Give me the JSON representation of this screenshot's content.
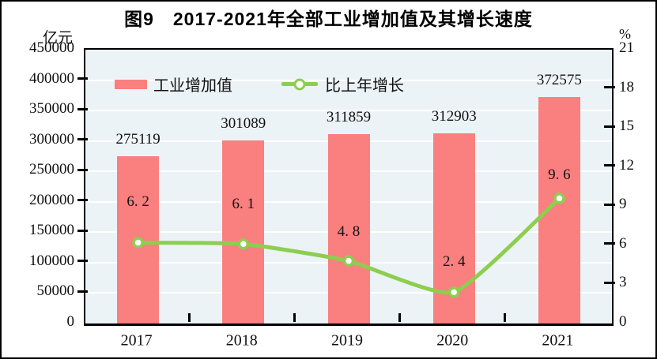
{
  "chart_data": {
    "type": "combo-bar-line",
    "title": "图9　2017-2021年全部工业增加值及其增长速度",
    "categories": [
      "2017",
      "2018",
      "2019",
      "2020",
      "2021"
    ],
    "series": [
      {
        "name": "工业增加值",
        "type": "bar",
        "axis": "left",
        "color": "#fa7f7f",
        "values": [
          275119,
          301089,
          311859,
          312903,
          372575
        ],
        "data_labels": [
          "275119",
          "301089",
          "311859",
          "312903",
          "372575"
        ]
      },
      {
        "name": "比上年增长",
        "type": "line",
        "axis": "right",
        "color": "#8dce4f",
        "marker": "circle-white-fill",
        "values": [
          6.2,
          6.1,
          4.8,
          2.4,
          9.6
        ],
        "data_labels": [
          "6. 2",
          "6. 1",
          "4. 8",
          "2. 4",
          "9. 6"
        ]
      }
    ],
    "left_axis": {
      "label": "亿元",
      "min": 0,
      "max": 450000,
      "step": 50000,
      "tick_labels": [
        "0",
        "50000",
        "100000",
        "150000",
        "200000",
        "250000",
        "300000",
        "350000",
        "400000",
        "450000"
      ]
    },
    "right_axis": {
      "label": "%",
      "min": 0,
      "max": 21,
      "step": 3,
      "tick_labels": [
        "0",
        "3",
        "6",
        "9",
        "12",
        "15",
        "18",
        "21"
      ]
    },
    "legend_position": "top-inside-left",
    "grid": "horizontal",
    "colors": {
      "plot_bg": "#ecf3f7",
      "gridline": "#ffffff",
      "axis_frame": "#000000",
      "text": "#111111",
      "bar": "#fa7f7f",
      "line": "#8dce4f",
      "marker_fill": "#ffffff"
    }
  }
}
